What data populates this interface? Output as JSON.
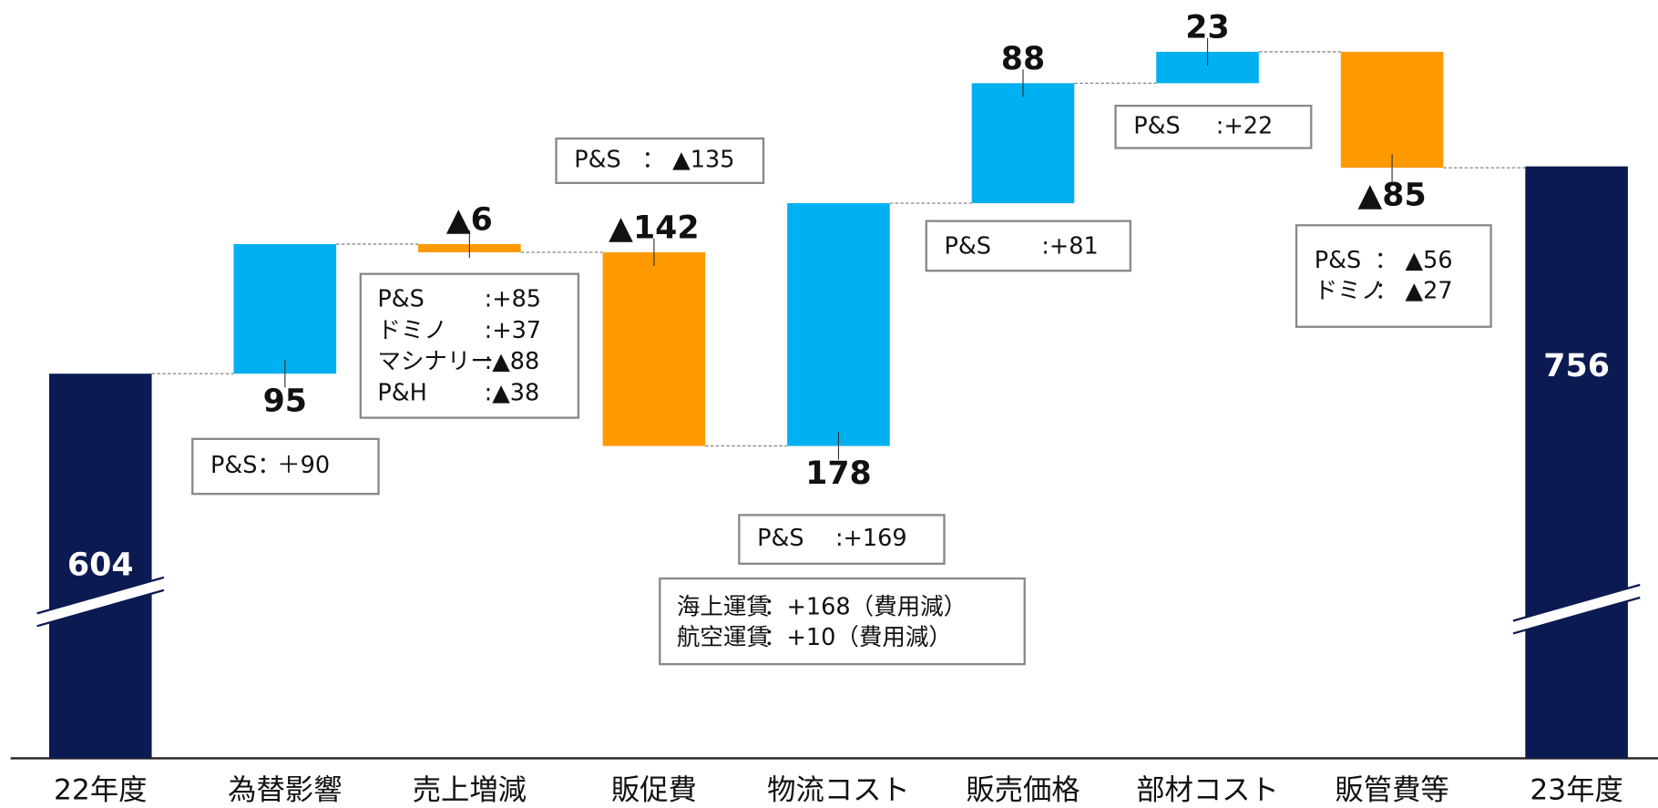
{
  "chart_data": {
    "type": "waterfall",
    "categories": [
      "22年度",
      "為替影響",
      "売上増減",
      "販促費",
      "物流コスト",
      "販売価格",
      "部材コスト",
      "販管費等",
      "23年度"
    ],
    "values": [
      604,
      95,
      -6,
      -142,
      178,
      88,
      23,
      -85,
      756
    ],
    "value_labels": [
      "604",
      "95",
      "▲6",
      "▲142",
      "178",
      "88",
      "23",
      "▲85",
      "756"
    ],
    "colors": {
      "total": "#0c1a52",
      "increase": "#00b0f0",
      "decrease": "#ff9900"
    },
    "ylim": [
      322,
      878
    ],
    "annotations": [
      {
        "lines": [
          [
            "P&S：",
            "＋90"
          ]
        ]
      },
      {
        "lines": [
          [
            "P&S",
            ":+85"
          ],
          [
            "ドミノ",
            ":+37"
          ],
          [
            "マシナリー",
            ":▲88"
          ],
          [
            "P&H",
            ":▲38"
          ]
        ]
      },
      {
        "lines": [
          [
            "P&S",
            "： ▲135"
          ]
        ]
      },
      {
        "lines": [
          [
            "P&S",
            ":+169"
          ]
        ]
      },
      {
        "lines": [
          [
            "海上運賃",
            "：+168（費用減）"
          ],
          [
            "航空運賃",
            "：+10（費用減）"
          ]
        ]
      },
      {
        "lines": [
          [
            "P&S",
            ":+81"
          ]
        ]
      },
      {
        "lines": [
          [
            "P&S",
            ":+22"
          ]
        ]
      },
      {
        "lines": [
          [
            "P&S",
            "： ▲56"
          ],
          [
            "ドミノ",
            "： ▲27"
          ]
        ]
      }
    ]
  }
}
